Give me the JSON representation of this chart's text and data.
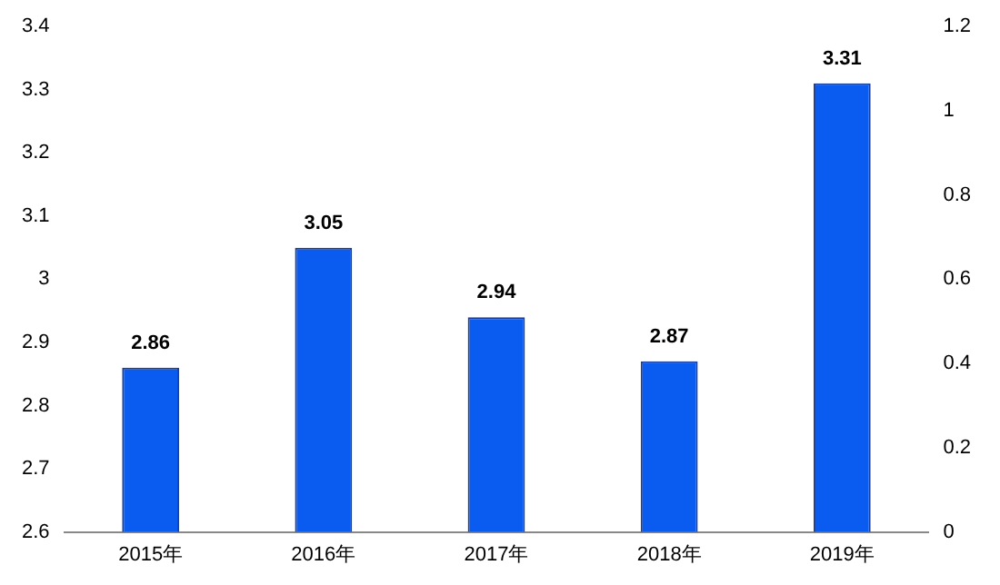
{
  "chart_data": {
    "type": "bar",
    "categories": [
      "2015年",
      "2016年",
      "2017年",
      "2018年",
      "2019年"
    ],
    "values": [
      2.86,
      3.05,
      2.94,
      2.87,
      3.31
    ],
    "color": "#0a5cf0",
    "ylim": [
      2.6,
      3.4
    ],
    "yticks": [
      2.6,
      2.7,
      2.8,
      2.9,
      3,
      3.1,
      3.2,
      3.3,
      3.4
    ],
    "y2lim": [
      0,
      1.2
    ],
    "y2ticks": [
      0,
      0.2,
      0.4,
      0.6,
      0.8,
      1,
      1.2
    ],
    "data_labels": true,
    "grid": false,
    "legend": false
  }
}
